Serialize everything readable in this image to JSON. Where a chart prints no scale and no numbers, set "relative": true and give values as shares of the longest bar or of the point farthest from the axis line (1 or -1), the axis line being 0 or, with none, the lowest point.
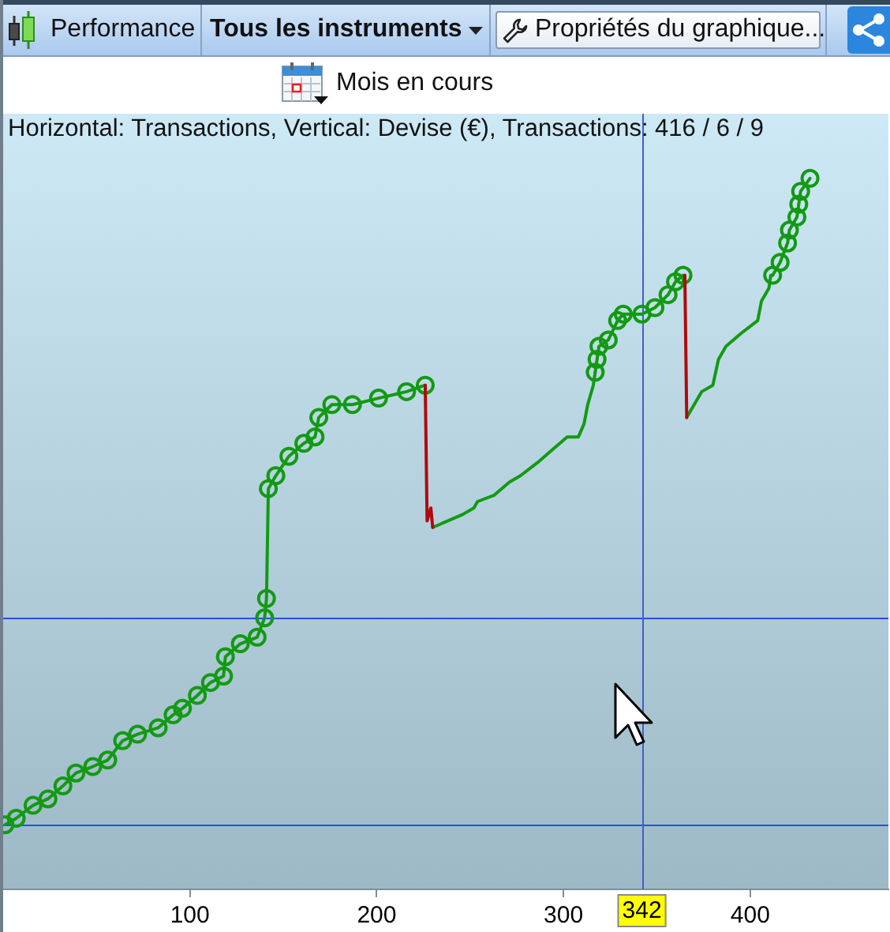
{
  "chart_data": {
    "type": "line",
    "relative": true,
    "subtitle": "Horizontal: Transactions, Vertical: Devise (€), Transactions: 416 / 6 / 9",
    "annotations": [
      "Performance",
      "Tous les instruments",
      "Propriétés du graphique...",
      "Mois en cours"
    ],
    "xlim": [
      0,
      474
    ],
    "xticks": [
      100,
      200,
      300,
      400
    ],
    "tick_labels": "x",
    "grid": false,
    "legend": false,
    "series": [
      {
        "color": "#139a13",
        "marker": "circle",
        "x": [
          1,
          7,
          16,
          24,
          32,
          39,
          48,
          56,
          64,
          72,
          83,
          91,
          96,
          104,
          111,
          118,
          119,
          127,
          136,
          140,
          141,
          142,
          146,
          153,
          161,
          167,
          169,
          176,
          187,
          201,
          216,
          226
        ],
        "values": [
          0,
          0.01,
          0.03,
          0.04,
          0.06,
          0.08,
          0.09,
          0.1,
          0.13,
          0.14,
          0.15,
          0.17,
          0.18,
          0.2,
          0.22,
          0.23,
          0.26,
          0.28,
          0.29,
          0.32,
          0.35,
          0.52,
          0.54,
          0.57,
          0.59,
          0.6,
          0.63,
          0.65,
          0.65,
          0.66,
          0.67,
          0.68
        ]
      },
      {
        "color": "#139a13",
        "marker": "circle",
        "x": [
          317,
          318,
          319,
          324,
          329,
          332,
          342,
          349,
          356,
          360,
          364
        ],
        "values": [
          0.7,
          0.72,
          0.74,
          0.75,
          0.78,
          0.79,
          0.79,
          0.8,
          0.82,
          0.84,
          0.85
        ]
      },
      {
        "color": "#139a13",
        "marker": "circle",
        "x": [
          412,
          416,
          420,
          421,
          425,
          426,
          427,
          432
        ],
        "values": [
          0.85,
          0.87,
          0.9,
          0.92,
          0.94,
          0.96,
          0.98,
          1
        ]
      },
      {
        "color": "#139a13",
        "marker": "none",
        "x": [
          230,
          246,
          252,
          254,
          263,
          271,
          277,
          286,
          294,
          302,
          308,
          311,
          313,
          316,
          317
        ],
        "values": [
          0.46,
          0.48,
          0.49,
          0.5,
          0.51,
          0.53,
          0.54,
          0.56,
          0.58,
          0.6,
          0.6,
          0.62,
          0.65,
          0.68,
          0.7
        ]
      },
      {
        "color": "#139a13",
        "marker": "none",
        "x": [
          366,
          374,
          380,
          383,
          387,
          395,
          404,
          406,
          410,
          411,
          412
        ],
        "values": [
          0.63,
          0.67,
          0.68,
          0.72,
          0.74,
          0.76,
          0.78,
          0.81,
          0.83,
          0.85,
          0.85
        ]
      },
      {
        "color": "#b00a0a",
        "marker": "none",
        "x": [
          226,
          227,
          229,
          230
        ],
        "values": [
          0.68,
          0.47,
          0.49,
          0.46
        ]
      },
      {
        "color": "#b00a0a",
        "marker": "none",
        "x": [
          365,
          366
        ],
        "values": [
          0.85,
          0.63
        ]
      }
    ],
    "ref_lines": [
      {
        "axis": "y",
        "value": 0.32,
        "color": "#2a4cf0"
      },
      {
        "axis": "y",
        "value": 0,
        "color": "#2a4cf0"
      },
      {
        "axis": "x",
        "value": 342,
        "label": "342",
        "color": "#3f5fd0"
      }
    ]
  }
}
